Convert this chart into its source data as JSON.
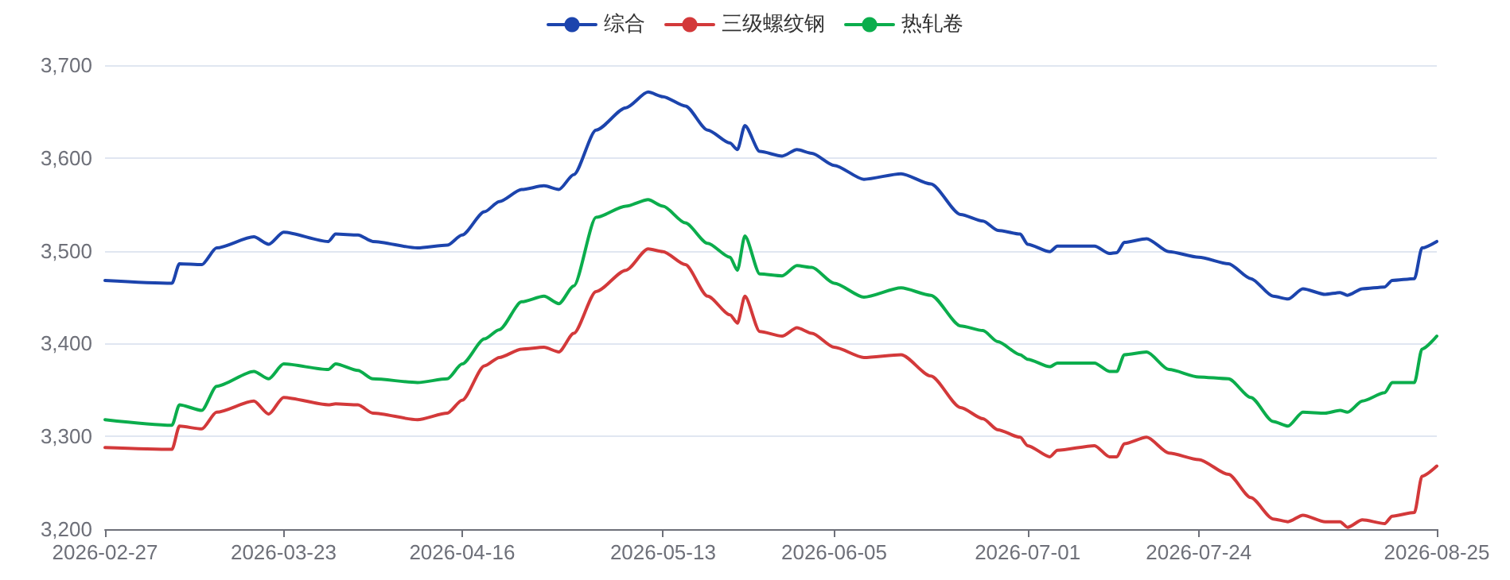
{
  "chart_data": {
    "type": "line",
    "x": [
      "2026-02-27",
      "2026-03-08",
      "2026-03-09",
      "2026-03-12",
      "2026-03-14",
      "2026-03-19",
      "2026-03-21",
      "2026-03-23",
      "2026-03-29",
      "2026-03-30",
      "2026-04-02",
      "2026-04-04",
      "2026-04-10",
      "2026-04-14",
      "2026-04-16",
      "2026-04-19",
      "2026-04-21",
      "2026-04-24",
      "2026-04-27",
      "2026-04-29",
      "2026-05-01",
      "2026-05-04",
      "2026-05-08",
      "2026-05-11",
      "2026-05-13",
      "2026-05-16",
      "2026-05-19",
      "2026-05-22",
      "2026-05-23",
      "2026-05-24",
      "2026-05-26",
      "2026-05-29",
      "2026-05-31",
      "2026-06-02",
      "2026-06-05",
      "2026-06-09",
      "2026-06-14",
      "2026-06-18",
      "2026-06-22",
      "2026-06-25",
      "2026-06-27",
      "2026-06-30",
      "2026-07-01",
      "2026-07-04",
      "2026-07-05",
      "2026-07-10",
      "2026-07-12",
      "2026-07-13",
      "2026-07-14",
      "2026-07-17",
      "2026-07-20",
      "2026-07-24",
      "2026-07-28",
      "2026-07-31",
      "2026-08-03",
      "2026-08-05",
      "2026-08-07",
      "2026-08-10",
      "2026-08-12",
      "2026-08-13",
      "2026-08-15",
      "2026-08-18",
      "2026-08-19",
      "2026-08-22",
      "2026-08-23",
      "2026-08-25"
    ],
    "series": [
      {
        "name": "综合",
        "color": "#1c44ad",
        "values": [
          3468,
          3465,
          3486,
          3485,
          3503,
          3515,
          3507,
          3520,
          3510,
          3518,
          3517,
          3510,
          3503,
          3506,
          3517,
          3542,
          3553,
          3566,
          3570,
          3566,
          3582,
          3630,
          3654,
          3671,
          3666,
          3656,
          3630,
          3616,
          3609,
          3635,
          3607,
          3602,
          3609,
          3605,
          3592,
          3577,
          3583,
          3572,
          3539,
          3532,
          3522,
          3518,
          3507,
          3499,
          3505,
          3505,
          3497,
          3498,
          3509,
          3513,
          3499,
          3493,
          3486,
          3470,
          3451,
          3448,
          3459,
          3453,
          3455,
          3452,
          3459,
          3461,
          3468,
          3470,
          3503,
          3510
        ]
      },
      {
        "name": "三级螺纹钢",
        "color": "#d3393a",
        "values": [
          3288,
          3286,
          3311,
          3308,
          3326,
          3338,
          3324,
          3342,
          3334,
          3335,
          3334,
          3325,
          3318,
          3325,
          3339,
          3376,
          3385,
          3394,
          3396,
          3391,
          3411,
          3456,
          3479,
          3502,
          3499,
          3485,
          3451,
          3431,
          3422,
          3451,
          3413,
          3408,
          3417,
          3411,
          3396,
          3385,
          3388,
          3365,
          3331,
          3319,
          3307,
          3299,
          3290,
          3278,
          3285,
          3290,
          3278,
          3278,
          3292,
          3299,
          3282,
          3275,
          3259,
          3234,
          3211,
          3208,
          3215,
          3208,
          3208,
          3202,
          3210,
          3206,
          3214,
          3218,
          3257,
          3268
        ]
      },
      {
        "name": "热轧卷",
        "color": "#0bad4c",
        "values": [
          3318,
          3312,
          3334,
          3328,
          3354,
          3370,
          3362,
          3378,
          3372,
          3378,
          3371,
          3362,
          3358,
          3362,
          3378,
          3405,
          3415,
          3445,
          3451,
          3443,
          3462,
          3536,
          3548,
          3555,
          3548,
          3530,
          3508,
          3493,
          3479,
          3516,
          3475,
          3473,
          3484,
          3482,
          3465,
          3450,
          3460,
          3452,
          3419,
          3414,
          3402,
          3388,
          3383,
          3375,
          3379,
          3379,
          3370,
          3370,
          3388,
          3391,
          3372,
          3364,
          3362,
          3342,
          3316,
          3311,
          3326,
          3325,
          3328,
          3326,
          3338,
          3347,
          3358,
          3358,
          3394,
          3408
        ]
      }
    ],
    "xlim": [
      "2026-02-27",
      "2026-08-25"
    ],
    "xticks": [
      "2026-02-27",
      "2026-03-23",
      "2026-04-16",
      "2026-05-13",
      "2026-06-05",
      "2026-07-01",
      "2026-07-24",
      "2026-08-25"
    ],
    "ylim": [
      3200,
      3700
    ],
    "yticks": [
      {
        "value": 3200,
        "label": "3,200"
      },
      {
        "value": 3300,
        "label": "3,300"
      },
      {
        "value": 3400,
        "label": "3,400"
      },
      {
        "value": 3500,
        "label": "3,500"
      },
      {
        "value": 3600,
        "label": "3,600"
      },
      {
        "value": 3700,
        "label": "3,700"
      }
    ],
    "grid": "y",
    "legend": "top",
    "marker": "none",
    "line_style": "solid"
  }
}
